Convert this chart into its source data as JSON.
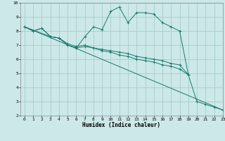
{
  "xlabel": "Humidex (Indice chaleur)",
  "bg_color": "#cce8e8",
  "grid_color": "#aacccc",
  "line_color": "#1a7a6e",
  "xlim": [
    -0.5,
    23
  ],
  "ylim": [
    2,
    10
  ],
  "yticks": [
    2,
    3,
    4,
    5,
    6,
    7,
    8,
    9,
    10
  ],
  "xticks": [
    0,
    1,
    2,
    3,
    4,
    5,
    6,
    7,
    8,
    9,
    10,
    11,
    12,
    13,
    14,
    15,
    16,
    17,
    18,
    19,
    20,
    21,
    22,
    23
  ],
  "series": [
    {
      "x": [
        0,
        1,
        2,
        3,
        4,
        5,
        6,
        7,
        8,
        9,
        10,
        11,
        12,
        13,
        14,
        15,
        16,
        17,
        18,
        19,
        20,
        21,
        22,
        23
      ],
      "y": [
        8.3,
        8.0,
        8.2,
        7.6,
        7.5,
        7.0,
        6.8,
        7.6,
        8.3,
        8.1,
        9.4,
        9.7,
        8.6,
        9.3,
        9.3,
        9.2,
        8.6,
        8.3,
        8.0,
        4.9,
        3.0,
        2.8,
        2.6,
        2.4
      ],
      "marker": true
    },
    {
      "x": [
        0,
        1,
        2,
        3,
        4,
        5,
        6,
        7,
        8,
        9,
        10,
        11,
        12,
        13,
        14,
        15,
        16,
        17,
        18,
        19
      ],
      "y": [
        8.3,
        8.0,
        8.2,
        7.6,
        7.5,
        7.1,
        6.9,
        7.0,
        6.8,
        6.7,
        6.6,
        6.5,
        6.4,
        6.2,
        6.1,
        6.0,
        5.9,
        5.7,
        5.6,
        4.9
      ],
      "marker": true
    },
    {
      "x": [
        0,
        3,
        4,
        5,
        6,
        7,
        8,
        9,
        10,
        11,
        12,
        13,
        14,
        15,
        16,
        17,
        18,
        19
      ],
      "y": [
        8.3,
        7.6,
        7.5,
        7.0,
        6.8,
        6.9,
        6.8,
        6.6,
        6.5,
        6.3,
        6.2,
        6.0,
        5.9,
        5.8,
        5.6,
        5.5,
        5.3,
        4.9
      ],
      "marker": true
    },
    {
      "x": [
        0,
        23
      ],
      "y": [
        8.3,
        2.4
      ],
      "marker": false
    }
  ]
}
